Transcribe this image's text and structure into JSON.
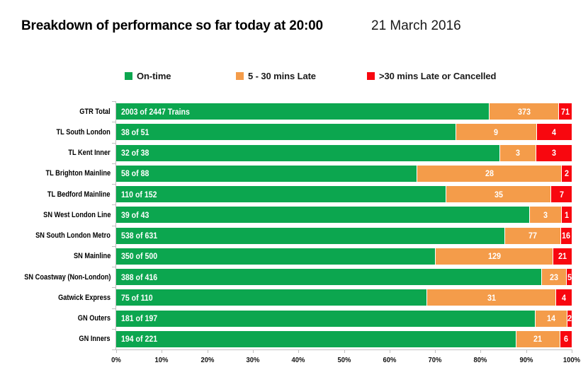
{
  "header": {
    "title": "Breakdown of performance so far today at 20:00",
    "date": "21 March 2016"
  },
  "legend": {
    "items": [
      {
        "label": "On-time",
        "color": "#0CA64F"
      },
      {
        "label": "5 - 30 mins Late",
        "color": "#F49C4A"
      },
      {
        "label": ">30 mins Late or Cancelled",
        "color": "#F8070F"
      }
    ]
  },
  "chart_data": {
    "type": "bar",
    "orientation": "horizontal",
    "stacking": "percent",
    "title": "Breakdown of performance so far today at 20:00",
    "date": "21 March 2016",
    "legend_position": "top",
    "grid": false,
    "axis_color": "#BFBFBF",
    "xlim": [
      0,
      100
    ],
    "x_ticks": [
      "0%",
      "10%",
      "20%",
      "30%",
      "40%",
      "50%",
      "60%",
      "70%",
      "80%",
      "90%",
      "100%"
    ],
    "series_names": [
      "On-time",
      "5 - 30 mins Late",
      ">30 mins Late or Cancelled"
    ],
    "rows": [
      {
        "category": "GTR Total",
        "on_time": 2003,
        "late_5_30": 373,
        "late_30_or_cancelled": 71,
        "total": 2447,
        "on_time_label": "2003 of 2447 Trains",
        "late_label": "373",
        "cancelled_label": "71"
      },
      {
        "category": "TL South London",
        "on_time": 38,
        "late_5_30": 9,
        "late_30_or_cancelled": 4,
        "total": 51,
        "on_time_label": "38 of 51",
        "late_label": "9",
        "cancelled_label": "4"
      },
      {
        "category": "TL Kent Inner",
        "on_time": 32,
        "late_5_30": 3,
        "late_30_or_cancelled": 3,
        "total": 38,
        "on_time_label": "32 of 38",
        "late_label": "3",
        "cancelled_label": "3"
      },
      {
        "category": "TL Brighton Mainline",
        "on_time": 58,
        "late_5_30": 28,
        "late_30_or_cancelled": 2,
        "total": 88,
        "on_time_label": "58 of 88",
        "late_label": "28",
        "cancelled_label": "2"
      },
      {
        "category": "TL Bedford Mainline",
        "on_time": 110,
        "late_5_30": 35,
        "late_30_or_cancelled": 7,
        "total": 152,
        "on_time_label": "110 of 152",
        "late_label": "35",
        "cancelled_label": "7"
      },
      {
        "category": "SN West London Line",
        "on_time": 39,
        "late_5_30": 3,
        "late_30_or_cancelled": 1,
        "total": 43,
        "on_time_label": "39 of 43",
        "late_label": "3",
        "cancelled_label": "1"
      },
      {
        "category": "SN South London Metro",
        "on_time": 538,
        "late_5_30": 77,
        "late_30_or_cancelled": 16,
        "total": 631,
        "on_time_label": "538 of 631",
        "late_label": "77",
        "cancelled_label": "16"
      },
      {
        "category": "SN Mainline",
        "on_time": 350,
        "late_5_30": 129,
        "late_30_or_cancelled": 21,
        "total": 500,
        "on_time_label": "350 of 500",
        "late_label": "129",
        "cancelled_label": "21"
      },
      {
        "category": "SN Coastway (Non-London)",
        "on_time": 388,
        "late_5_30": 23,
        "late_30_or_cancelled": 5,
        "total": 416,
        "on_time_label": "388 of 416",
        "late_label": "23",
        "cancelled_label": "5"
      },
      {
        "category": "Gatwick Express",
        "on_time": 75,
        "late_5_30": 31,
        "late_30_or_cancelled": 4,
        "total": 110,
        "on_time_label": "75 of 110",
        "late_label": "31",
        "cancelled_label": "4"
      },
      {
        "category": "GN Outers",
        "on_time": 181,
        "late_5_30": 14,
        "late_30_or_cancelled": 2,
        "total": 197,
        "on_time_label": "181 of 197",
        "late_label": "14",
        "cancelled_label": "2"
      },
      {
        "category": "GN Inners",
        "on_time": 194,
        "late_5_30": 21,
        "late_30_or_cancelled": 6,
        "total": 221,
        "on_time_label": "194 of 221",
        "late_label": "21",
        "cancelled_label": "6"
      }
    ]
  }
}
